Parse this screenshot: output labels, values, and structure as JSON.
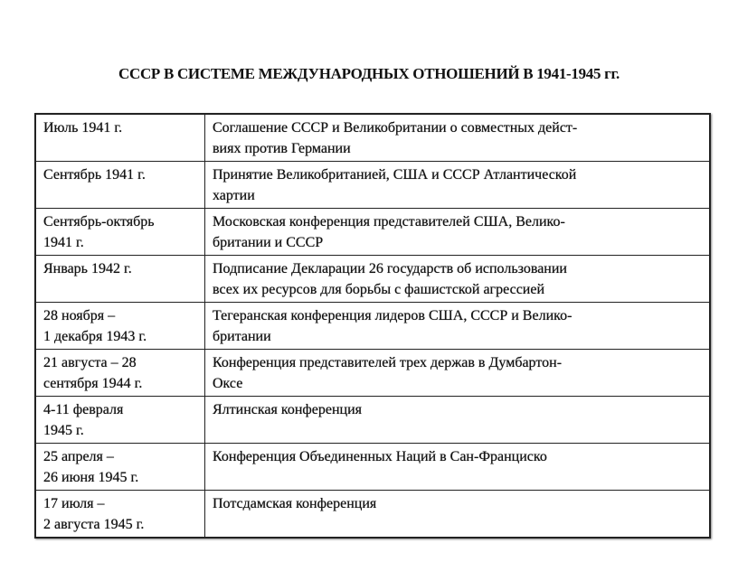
{
  "title": "СССР В СИСТЕМЕ МЕЖДУНАРОДНЫХ ОТНОШЕНИЙ В 1941-1945 гг.",
  "rows": [
    {
      "date": "Июль 1941 г.",
      "event": "Соглашение СССР  и Великобритании о совместных дейст-\nвиях против Германии"
    },
    {
      "date": "Сентябрь 1941 г.",
      "event": "Принятие Великобританией, США  и СССР  Атлантической\nхартии"
    },
    {
      "date": "Сентябрь-октябрь\n1941 г.",
      "event": "Московская конференция представителей США, Велико-\nбритании и СССР"
    },
    {
      "date": "Январь 1942 г.",
      "event": "Подписание Декларации 26 государств об использовании\nвсех их ресурсов для борьбы с фашистской агрессией"
    },
    {
      "date": "28  ноября –\n1 декабря 1943 г.",
      "event": "Тегеранская конференция лидеров США, СССР  и Велико-\nбритании"
    },
    {
      "date": "21  августа – 28\nсентября 1944 г.",
      "event": "Конференция представителей трех держав в Думбартон-\nОксе"
    },
    {
      "date": "4-11 февраля\n1945 г.",
      "event": "Ялтинская конференция"
    },
    {
      "date": "25  апреля –\n26  июня 1945 г.",
      "event": "Конференция Объединенных  Наций  в Сан-Франциско"
    },
    {
      "date": "17  июля –\n2 августа 1945 г.",
      "event": "Потсдамская конференция"
    }
  ]
}
